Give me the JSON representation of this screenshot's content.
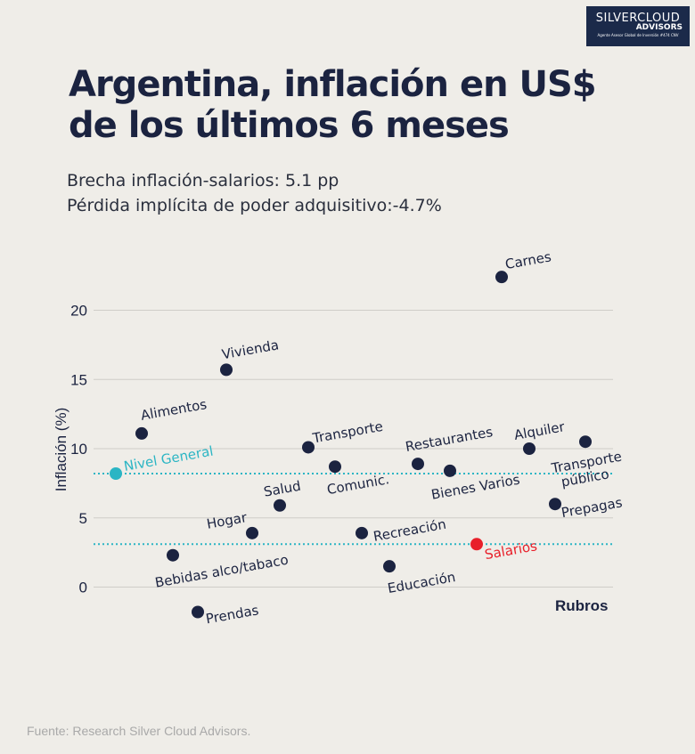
{
  "logo": {
    "line1": "SILVERCLOUD",
    "line2": "ADVISORS",
    "line3": "Agente Asesor Global de Inversión #474 CNV"
  },
  "title_line1": "Argentina, inflación en US$",
  "title_line2": "de los últimos 6 meses",
  "subtitle1": "Brecha inflación-salarios: 5.1 pp",
  "subtitle2": "Pérdida implícita de poder adquisitivo:-4.7%",
  "footer": "Fuente: Research Silver Cloud Advisors.",
  "colors": {
    "points": "#1b2340",
    "nivel_general": "#2bb5c4",
    "salarios": "#e8202a",
    "grid": "#cfcdc8"
  },
  "chart_data": {
    "type": "scatter",
    "xlabel": "Rubros",
    "ylabel": "Inflación (%)",
    "ylim": [
      -2,
      23
    ],
    "yticks": [
      0,
      5,
      10,
      15,
      20
    ],
    "grid": true,
    "reference_lines": [
      {
        "ref": "Nivel General",
        "y": 8.2,
        "color": "#2bb5c4",
        "style": "dotted"
      },
      {
        "ref": "Salarios",
        "y": 3.1,
        "color": "#2bb5c4",
        "style": "dotted"
      }
    ],
    "points": [
      {
        "label": "Nivel General",
        "y": 8.2,
        "highlight": "nivel_general"
      },
      {
        "label": "Alimentos",
        "y": 11.1
      },
      {
        "label": "Bebidas alco/tabaco",
        "y": 2.3
      },
      {
        "label": "Prendas",
        "y": -1.8
      },
      {
        "label": "Vivienda",
        "y": 15.7
      },
      {
        "label": "Hogar",
        "y": 3.9
      },
      {
        "label": "Salud",
        "y": 5.9
      },
      {
        "label": "Transporte",
        "y": 10.1
      },
      {
        "label": "Comunic.",
        "y": 8.7
      },
      {
        "label": "Recreación",
        "y": 3.9
      },
      {
        "label": "Educación",
        "y": 1.5
      },
      {
        "label": "Restaurantes",
        "y": 8.9
      },
      {
        "label": "Bienes Varios",
        "y": 8.4
      },
      {
        "label": "Salarios",
        "y": 3.1,
        "highlight": "salarios"
      },
      {
        "label": "Carnes",
        "y": 22.4
      },
      {
        "label": "Alquiler",
        "y": 10.0
      },
      {
        "label": "Prepagas",
        "y": 6.0
      },
      {
        "label": "Transporte público",
        "y": 10.5
      }
    ]
  }
}
